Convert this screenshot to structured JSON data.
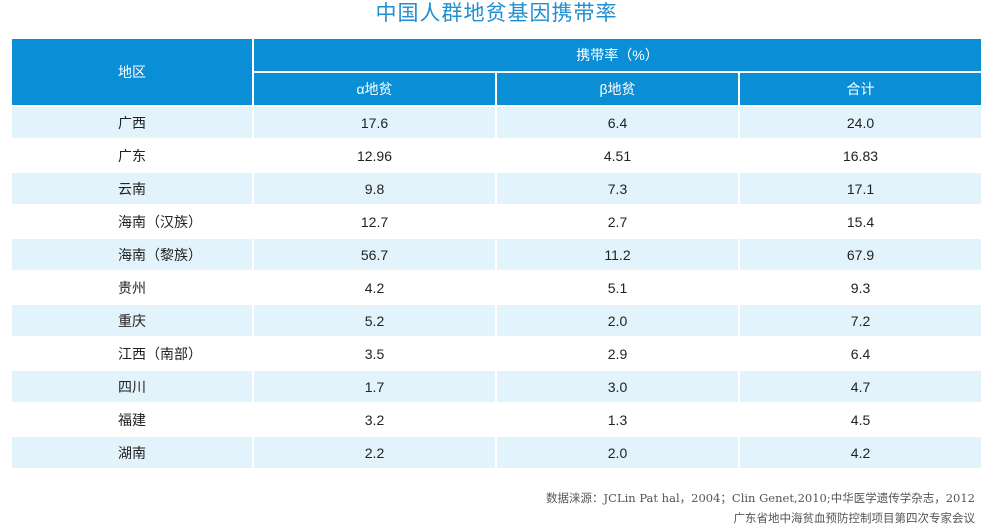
{
  "title": "中国人群地贫基因携带率",
  "header": {
    "region": "地区",
    "group": "携带率（%）",
    "alpha": "α地贫",
    "beta": "β地贫",
    "total": "合计"
  },
  "rows": [
    {
      "region": "广西",
      "alpha": "17.6",
      "beta": "6.4",
      "total": "24.0"
    },
    {
      "region": "广东",
      "alpha": "12.96",
      "beta": "4.51",
      "total": "16.83"
    },
    {
      "region": "云南",
      "alpha": "9.8",
      "beta": "7.3",
      "total": "17.1"
    },
    {
      "region": "海南（汉族）",
      "alpha": "12.7",
      "beta": "2.7",
      "total": "15.4"
    },
    {
      "region": "海南（黎族）",
      "alpha": "56.7",
      "beta": "11.2",
      "total": "67.9"
    },
    {
      "region": "贵州",
      "alpha": "4.2",
      "beta": "5.1",
      "total": "9.3"
    },
    {
      "region": "重庆",
      "alpha": "5.2",
      "beta": "2.0",
      "total": "7.2"
    },
    {
      "region": "江西（南部）",
      "alpha": "3.5",
      "beta": "2.9",
      "total": "6.4"
    },
    {
      "region": "四川",
      "alpha": "1.7",
      "beta": "3.0",
      "total": "4.7"
    },
    {
      "region": "福建",
      "alpha": "3.2",
      "beta": "1.3",
      "total": "4.5"
    },
    {
      "region": "湖南",
      "alpha": "2.2",
      "beta": "2.0",
      "total": "4.2"
    }
  ],
  "source": {
    "line1": "数据涞源：JCLin Pat hal，2004；Clin Genet,2010;中华医学遗传学杂志，2012",
    "line2": "广东省地中海贫血预防控制项目第四次专家会议"
  },
  "colors": {
    "header_bg": "#0a8fd6",
    "stripe_bg": "#e3f3fc",
    "title": "#1f8fd1"
  }
}
